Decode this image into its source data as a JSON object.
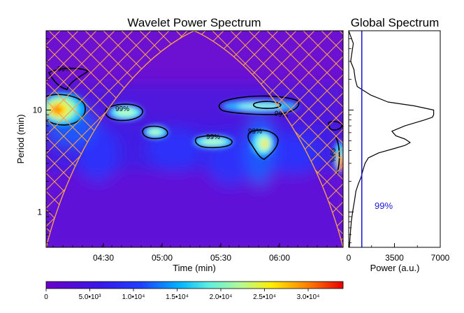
{
  "chart_data": [
    {
      "type": "heatmap",
      "title": "Wavelet Power Spectrum",
      "xlabel": "Time (min)",
      "ylabel": "Period (min)",
      "x_tick_labels": [
        "04:30",
        "05:00",
        "05:30",
        "06:00"
      ],
      "y_tick_labels": [
        "1",
        "10"
      ],
      "y_scale": "log",
      "significance_label": "99%",
      "colormap": [
        "#6a00c8",
        "#1e2bff",
        "#00c8ff",
        "#b4ffb4",
        "#ffee00",
        "#ff3300"
      ],
      "features": [
        {
          "time": "04:12",
          "period": 10.0,
          "power": 33000
        },
        {
          "time": "04:34",
          "period": 8.8,
          "power": 16000
        },
        {
          "time": "05:01",
          "period": 6.2,
          "power": 13000
        },
        {
          "time": "05:32",
          "period": 4.6,
          "power": 12000
        },
        {
          "time": "05:53",
          "period": 4.5,
          "power": 26000
        },
        {
          "time": "06:01",
          "period": 10.2,
          "power": 12000
        },
        {
          "time": "06:22",
          "period": 3.6,
          "power": 22000
        }
      ]
    },
    {
      "type": "line",
      "title": "Global Spectrum",
      "xlabel": "Power (a.u.)",
      "x_tick_labels": [
        "0",
        "3500",
        "7000"
      ],
      "xlim": [
        0,
        7000
      ],
      "ylim": [
        0.45,
        60
      ],
      "significance_label": "99%",
      "significance_value": 1000,
      "period": [
        60,
        45,
        30,
        25,
        20,
        17,
        14,
        12,
        11,
        10,
        9,
        8.5,
        8,
        7,
        6.2,
        5.6,
        5.2,
        4.8,
        4.5,
        4.2,
        3.8,
        3.4,
        3,
        2.6,
        2.2,
        1.9,
        1.6,
        1.3,
        1.0,
        0.8,
        0.6,
        0.45
      ],
      "power": [
        0,
        350,
        150,
        400,
        500,
        650,
        1700,
        3000,
        5000,
        6500,
        6500,
        6400,
        5800,
        4300,
        3300,
        3600,
        4300,
        4700,
        4300,
        3500,
        2300,
        1500,
        1250,
        1100,
        950,
        750,
        550,
        450,
        300,
        200,
        120,
        50
      ]
    },
    {
      "type": "colorbar",
      "tick_labels": [
        "0",
        "5.0•10³",
        "1.0•10⁴",
        "1.5•10⁴",
        "2.0•10⁴",
        "2.5•10⁴",
        "3.0•10⁴"
      ],
      "values": [
        0,
        5000,
        10000,
        15000,
        20000,
        25000,
        30000
      ],
      "max": 34000
    }
  ]
}
